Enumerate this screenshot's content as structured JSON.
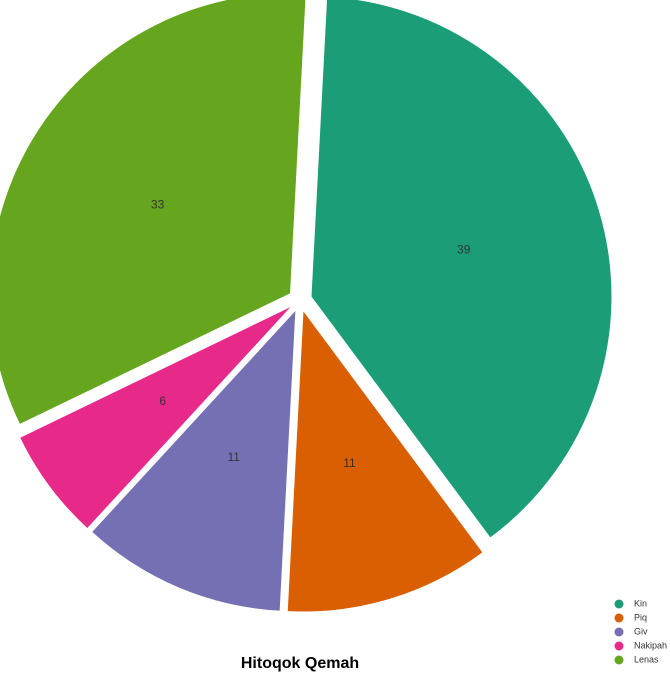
{
  "chart_data": {
    "type": "pie",
    "title": "Hitoqok Qemah",
    "slices": [
      {
        "label": "Kin",
        "value": 39,
        "color": "#1b9e77"
      },
      {
        "label": "Piq",
        "value": 11,
        "color": "#d95f02"
      },
      {
        "label": "Giv",
        "value": 11,
        "color": "#7570b3"
      },
      {
        "label": "Nakipah",
        "value": 6,
        "color": "#e7298a"
      },
      {
        "label": "Lenas",
        "value": 33,
        "color": "#66a61e"
      }
    ],
    "legend_position": "bottom-right",
    "exploded": true,
    "data_labels": true
  }
}
